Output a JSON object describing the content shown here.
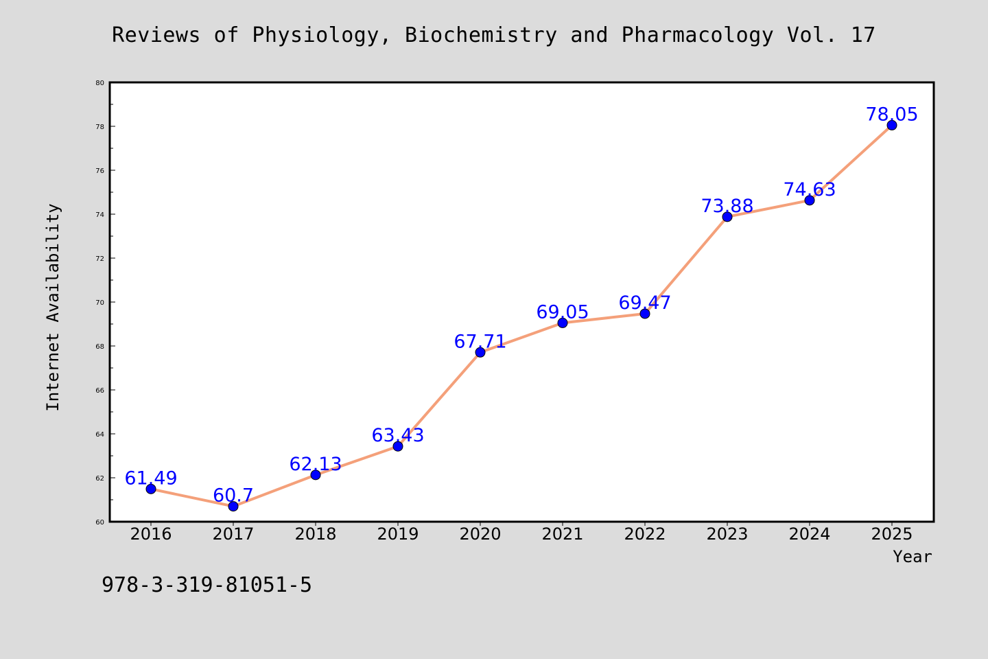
{
  "page": {
    "title": "Reviews of Physiology, Biochemistry and Pharmacology Vol. 17",
    "isbn": "978-3-319-81051-5"
  },
  "chart_data": {
    "type": "line",
    "title": "Reviews of Physiology, Biochemistry and Pharmacology Vol. 17",
    "xlabel": "Year",
    "ylabel": "Internet Availability",
    "x": [
      "2016",
      "2017",
      "2018",
      "2019",
      "2020",
      "2021",
      "2022",
      "2023",
      "2024",
      "2025"
    ],
    "series": [
      {
        "values": [
          61.49,
          60.7,
          62.13,
          63.43,
          67.71,
          69.05,
          69.47,
          73.88,
          74.63,
          78.05
        ],
        "labels": [
          "61.49",
          "60.7",
          "62.13",
          "63.43",
          "67.71",
          "69.05",
          "69.47",
          "73.88",
          "74.63",
          "78.05"
        ]
      }
    ],
    "ylim": [
      60,
      80
    ],
    "yticks": [
      "60",
      "62",
      "64",
      "66",
      "68",
      "70",
      "72",
      "74",
      "76",
      "78",
      "80"
    ],
    "grid": false,
    "colors": {
      "line": "#f4a07a",
      "marker": "#0000ff",
      "label": "#0000ff",
      "background": "#dcdcdc",
      "plot_background": "#ffffff"
    }
  }
}
